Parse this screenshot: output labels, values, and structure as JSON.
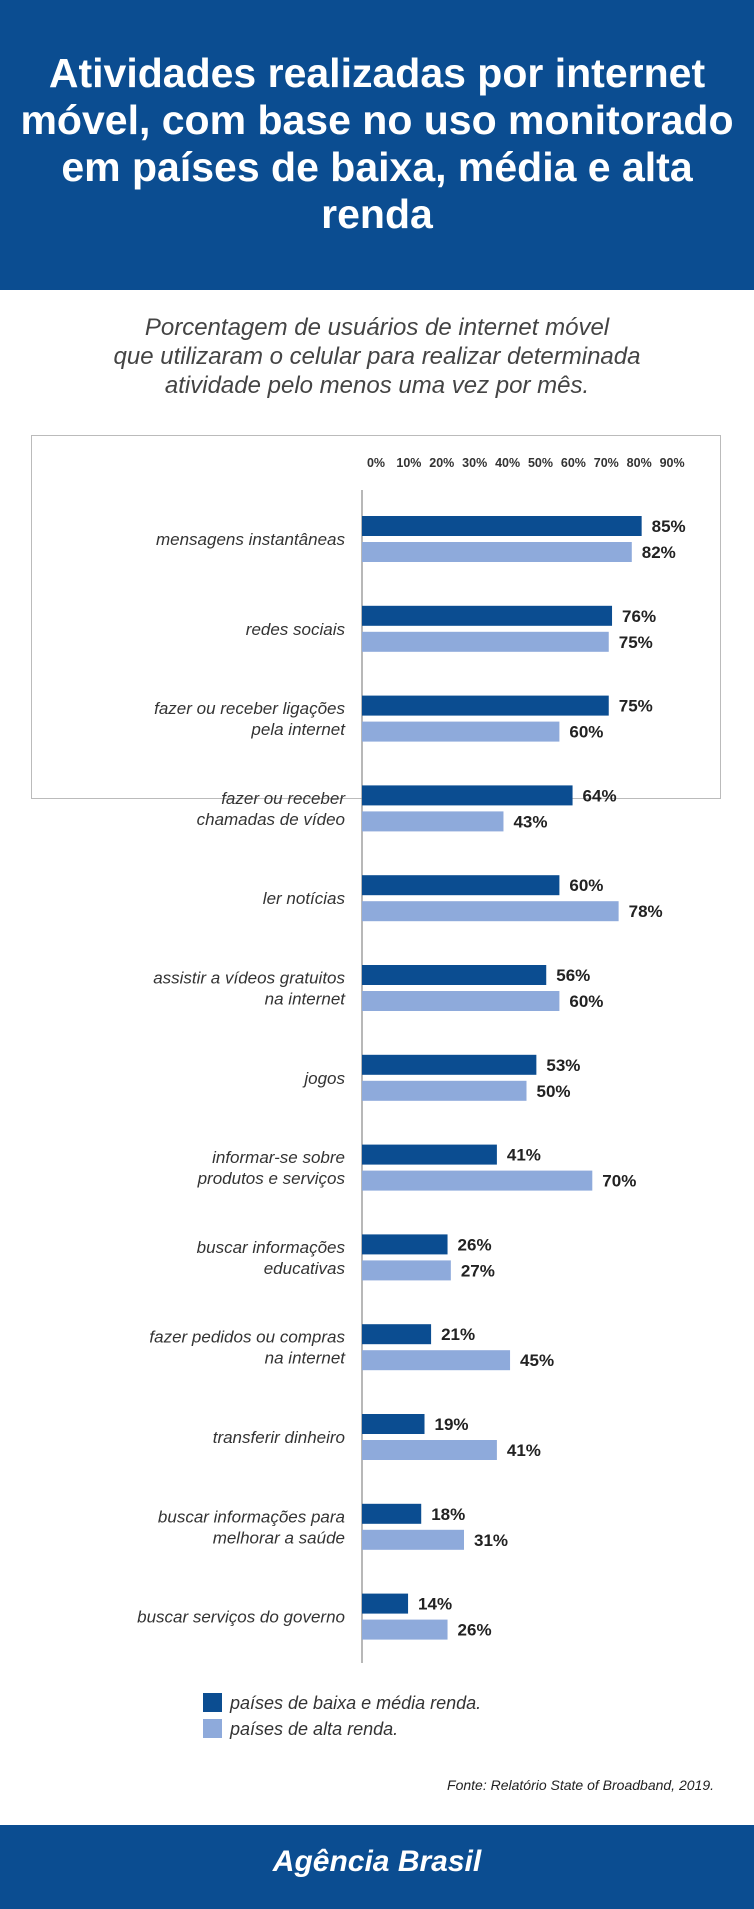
{
  "header": {
    "title": "Atividades realizadas por internet móvel, com base no uso monitorado em países de baixa, média e alta renda"
  },
  "subtitle": [
    "Porcentagem de usuários de internet móvel",
    "que utilizaram o celular para realizar determinada",
    "atividade pelo menos uma vez por mês."
  ],
  "chart_data": {
    "type": "bar",
    "orientation": "horizontal",
    "title": "Atividades realizadas por internet móvel, com base no uso monitorado em países de baixa, média e alta renda",
    "xlim": [
      0,
      90
    ],
    "x_ticks": [
      "0%",
      "10%",
      "20%",
      "30%",
      "40%",
      "50%",
      "60%",
      "70%",
      "80%",
      "90%"
    ],
    "x_axis_position": "top",
    "grid": false,
    "legend_position": "bottom",
    "categories": [
      [
        "mensagens instantâneas"
      ],
      [
        "redes sociais"
      ],
      [
        "fazer ou receber ligações",
        "pela internet"
      ],
      [
        "fazer ou receber",
        "chamadas de vídeo"
      ],
      [
        "ler notícias"
      ],
      [
        "assistir a vídeos gratuitos",
        "na internet"
      ],
      [
        "jogos"
      ],
      [
        "informar-se sobre",
        "produtos e serviços"
      ],
      [
        "buscar informações",
        "educativas"
      ],
      [
        "fazer pedidos ou compras",
        "na internet"
      ],
      [
        "transferir dinheiro"
      ],
      [
        "buscar informações para",
        "melhorar a saúde"
      ],
      [
        "buscar serviços do governo"
      ]
    ],
    "series": [
      {
        "name": "países de baixa e média renda.",
        "color": "#0b4d91",
        "values": [
          85,
          76,
          75,
          64,
          60,
          56,
          53,
          41,
          26,
          21,
          19,
          18,
          14
        ]
      },
      {
        "name": "países de alta renda.",
        "color": "#8eaadb",
        "values": [
          82,
          75,
          60,
          43,
          78,
          60,
          50,
          70,
          27,
          45,
          41,
          31,
          26
        ]
      }
    ],
    "value_suffix": "%"
  },
  "source": "Fonte: Relatório State of Broadband, 2019.",
  "footer": {
    "brand": "Agência Brasil"
  }
}
